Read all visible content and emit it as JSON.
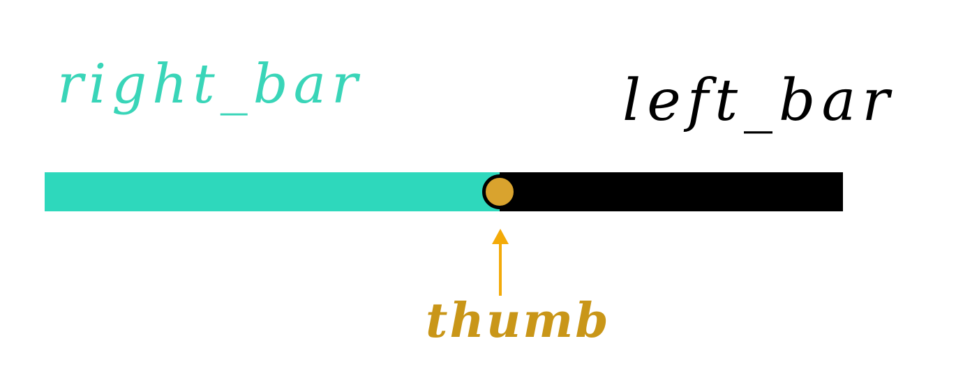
{
  "labels": {
    "right_bar": "right_bar",
    "left_bar": "left_bar",
    "thumb": "thumb"
  },
  "slider": {
    "value_fraction": 0.57
  },
  "colors": {
    "right_bar": "#2ED8BC",
    "left_bar": "#000000",
    "thumb_fill": "#D9A32E",
    "thumb_border": "#000000",
    "arrow": "#F3AA08",
    "right_bar_label": "#39D5B8",
    "left_bar_label": "#000000",
    "thumb_label": "#C99618"
  }
}
